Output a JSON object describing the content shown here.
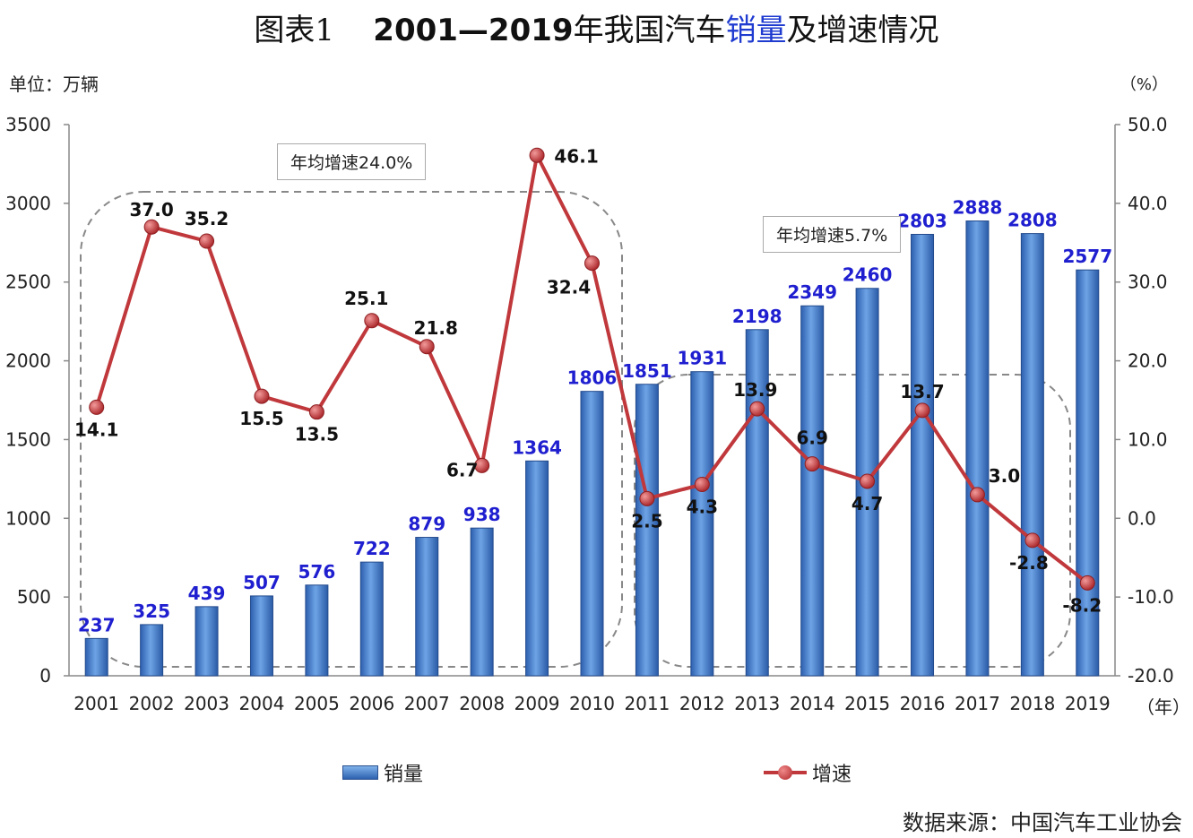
{
  "title": {
    "prefix": "图表1",
    "years": "2001—2019",
    "pre": "年我国汽车",
    "highlight": "销量",
    "post": "及增速情况"
  },
  "unit_left": "单位：万辆",
  "unit_right": "（%）",
  "x_unit": "（年）",
  "annotations": [
    "年均增速24.0%",
    "年均增速5.7%"
  ],
  "legend": {
    "bar": "销量",
    "line": "增速"
  },
  "source": "数据来源：中国汽车工业协会",
  "colors": {
    "bar": "#3a6fc0",
    "line": "#c0383b",
    "bar_label": "#1f1fd0",
    "line_label": "#111111"
  },
  "chart_data": {
    "type": "bar+line",
    "categories": [
      "2001",
      "2002",
      "2003",
      "2004",
      "2005",
      "2006",
      "2007",
      "2008",
      "2009",
      "2010",
      "2011",
      "2012",
      "2013",
      "2014",
      "2015",
      "2016",
      "2017",
      "2018",
      "2019"
    ],
    "series": [
      {
        "name": "销量",
        "type": "bar",
        "axis": "left",
        "values": [
          237,
          325,
          439,
          507,
          576,
          722,
          879,
          938,
          1364,
          1806,
          1851,
          1931,
          2198,
          2349,
          2460,
          2803,
          2888,
          2808,
          2577
        ]
      },
      {
        "name": "增速",
        "type": "line",
        "axis": "right",
        "values": [
          14.1,
          37.0,
          35.2,
          15.5,
          13.5,
          25.1,
          21.8,
          6.7,
          46.1,
          32.4,
          2.5,
          4.3,
          13.9,
          6.9,
          4.7,
          13.7,
          3.0,
          -2.8,
          -8.2
        ]
      }
    ],
    "y_left": {
      "min": 0,
      "max": 3500,
      "ticks": [
        "0",
        "500",
        "1000",
        "1500",
        "2000",
        "2500",
        "3000",
        "3500"
      ]
    },
    "y_right": {
      "min": -20,
      "max": 50,
      "ticks": [
        "-20.0",
        "-10.0",
        "0.0",
        "10.0",
        "20.0",
        "30.0",
        "40.0",
        "50.0"
      ]
    },
    "grid": false,
    "legend_position": "bottom"
  }
}
